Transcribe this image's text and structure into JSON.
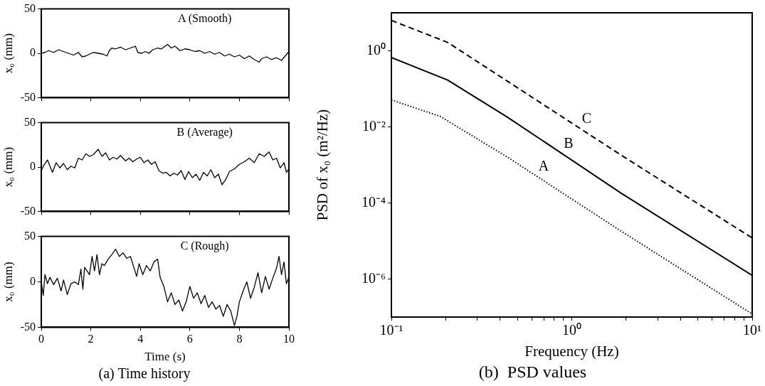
{
  "chart_data": [
    {
      "type": "line",
      "ylabel": "x₀ (mm)",
      "annotations": [
        "A (Smooth)"
      ],
      "xlim": [
        0,
        10
      ],
      "ylim": [
        -50,
        50
      ],
      "xticks": [
        0,
        2,
        4,
        6,
        8,
        10
      ],
      "yticks": [
        -50,
        0,
        50
      ],
      "tick_labels": "y",
      "grid": false,
      "legend": false,
      "series": [
        {
          "color": "#000000",
          "x": [
            0,
            0.15,
            0.3,
            0.5,
            0.7,
            0.9,
            1.1,
            1.3,
            1.5,
            1.65,
            1.8,
            1.95,
            2.1,
            2.3,
            2.5,
            2.65,
            2.75,
            2.85,
            3.0,
            3.2,
            3.4,
            3.6,
            3.8,
            3.9,
            4.05,
            4.2,
            4.35,
            4.5,
            4.7,
            4.85,
            5.0,
            5.1,
            5.25,
            5.4,
            5.6,
            5.8,
            6.0,
            6.2,
            6.4,
            6.6,
            6.8,
            7.0,
            7.2,
            7.4,
            7.6,
            7.8,
            8.0,
            8.2,
            8.4,
            8.6,
            8.8,
            8.9,
            9.1,
            9.3,
            9.5,
            9.7,
            9.85,
            10
          ],
          "values": [
            0,
            1,
            3,
            1,
            4,
            2,
            0,
            -2,
            1,
            -4,
            -3,
            -1,
            1,
            0,
            -1,
            -3,
            3,
            6,
            5,
            7,
            4,
            6,
            8,
            1,
            0,
            2,
            0,
            4,
            6,
            5,
            8,
            10,
            6,
            8,
            3,
            5,
            4,
            2,
            3,
            0,
            2,
            -1,
            1,
            -3,
            -1,
            -4,
            -2,
            -6,
            -3,
            -7,
            -10,
            -6,
            -4,
            -7,
            -5,
            -8,
            -3,
            2
          ]
        }
      ]
    },
    {
      "type": "line",
      "ylabel": "x₀ (mm)",
      "annotations": [
        "B (Average)"
      ],
      "xlim": [
        0,
        10
      ],
      "ylim": [
        -50,
        50
      ],
      "xticks": [
        0,
        2,
        4,
        6,
        8,
        10
      ],
      "yticks": [
        -50,
        0,
        50
      ],
      "tick_labels": "y",
      "grid": false,
      "legend": false,
      "series": [
        {
          "color": "#000000",
          "x": [
            0,
            0.1,
            0.25,
            0.45,
            0.6,
            0.75,
            0.9,
            1.05,
            1.2,
            1.35,
            1.5,
            1.65,
            1.8,
            1.95,
            2.1,
            2.3,
            2.45,
            2.6,
            2.75,
            2.9,
            3.05,
            3.2,
            3.4,
            3.55,
            3.7,
            3.85,
            4.0,
            4.15,
            4.3,
            4.45,
            4.6,
            4.75,
            4.9,
            5.05,
            5.2,
            5.35,
            5.5,
            5.65,
            5.8,
            5.95,
            6.1,
            6.25,
            6.4,
            6.55,
            6.7,
            6.85,
            7.0,
            7.15,
            7.3,
            7.45,
            7.6,
            7.8,
            8.0,
            8.2,
            8.4,
            8.6,
            8.8,
            9.0,
            9.2,
            9.35,
            9.5,
            9.65,
            9.8,
            9.9,
            10
          ],
          "values": [
            -4,
            2,
            8,
            -6,
            5,
            -1,
            4,
            -3,
            1,
            -1,
            10,
            8,
            15,
            12,
            14,
            20,
            12,
            16,
            8,
            11,
            9,
            13,
            7,
            10,
            6,
            9,
            11,
            5,
            8,
            3,
            6,
            -4,
            -7,
            -6,
            -10,
            -7,
            -9,
            -4,
            -14,
            -5,
            -12,
            -8,
            -15,
            -6,
            -10,
            -3,
            -12,
            -8,
            -20,
            -14,
            -5,
            -2,
            3,
            6,
            10,
            5,
            15,
            12,
            17,
            8,
            10,
            -1,
            5,
            -6,
            -2
          ]
        }
      ]
    },
    {
      "type": "line",
      "title": "(a) Time history",
      "xlabel": "Time (s)",
      "ylabel": "x₀ (mm)",
      "annotations": [
        "C (Rough)"
      ],
      "xlim": [
        0,
        10
      ],
      "ylim": [
        -50,
        50
      ],
      "xticks": [
        0,
        2,
        4,
        6,
        8,
        10
      ],
      "yticks": [
        -50,
        0,
        50
      ],
      "grid": false,
      "legend": false,
      "series": [
        {
          "color": "#000000",
          "x": [
            0,
            0.08,
            0.15,
            0.25,
            0.35,
            0.5,
            0.65,
            0.8,
            0.9,
            1.05,
            1.2,
            1.35,
            1.5,
            1.6,
            1.68,
            1.75,
            1.85,
            1.95,
            2.05,
            2.15,
            2.25,
            2.35,
            2.45,
            2.55,
            2.7,
            2.85,
            3.0,
            3.15,
            3.3,
            3.45,
            3.6,
            3.75,
            3.85,
            3.95,
            4.1,
            4.25,
            4.4,
            4.55,
            4.7,
            4.8,
            4.95,
            5.1,
            5.25,
            5.4,
            5.55,
            5.7,
            5.85,
            6.0,
            6.15,
            6.3,
            6.45,
            6.6,
            6.75,
            6.9,
            7.05,
            7.2,
            7.35,
            7.5,
            7.65,
            7.8,
            7.9,
            8.0,
            8.15,
            8.3,
            8.45,
            8.6,
            8.75,
            8.9,
            9.05,
            9.2,
            9.35,
            9.5,
            9.6,
            9.7,
            9.8,
            9.9,
            10
          ],
          "values": [
            0,
            -15,
            8,
            -2,
            5,
            -3,
            4,
            -10,
            2,
            -14,
            -2,
            0,
            -3,
            14,
            -8,
            16,
            12,
            8,
            28,
            12,
            30,
            8,
            20,
            18,
            25,
            30,
            36,
            28,
            32,
            26,
            28,
            15,
            6,
            20,
            8,
            18,
            12,
            22,
            25,
            5,
            -5,
            -22,
            -12,
            -25,
            -20,
            -32,
            -22,
            -5,
            -18,
            -12,
            -24,
            -15,
            -28,
            -22,
            -30,
            -26,
            -38,
            -25,
            -32,
            -48,
            -38,
            -22,
            -10,
            0,
            -18,
            -6,
            10,
            -12,
            6,
            -8,
            4,
            15,
            28,
            8,
            22,
            -2,
            5
          ]
        }
      ]
    },
    {
      "type": "line",
      "title": "(b)  PSD values",
      "xlabel": "Frequency (Hz)",
      "ylabel": "PSD of x₀ (m²/Hz)",
      "log": "xy",
      "grid": false,
      "legend": false,
      "xlim": [
        0.1,
        10
      ],
      "ylim": [
        1e-07,
        10
      ],
      "xticks": [
        {
          "value": 0.1,
          "label": "10⁻¹"
        },
        {
          "value": 0.2,
          "label": null
        },
        {
          "value": 0.3,
          "label": null
        },
        {
          "value": 0.4,
          "label": null
        },
        {
          "value": 0.5,
          "label": null
        },
        {
          "value": 0.6,
          "label": null
        },
        {
          "value": 0.7,
          "label": null
        },
        {
          "value": 0.8,
          "label": null
        },
        {
          "value": 0.9,
          "label": null
        },
        {
          "value": 1,
          "label": "10⁰"
        },
        {
          "value": 2,
          "label": null
        },
        {
          "value": 3,
          "label": null
        },
        {
          "value": 4,
          "label": null
        },
        {
          "value": 5,
          "label": null
        },
        {
          "value": 6,
          "label": null
        },
        {
          "value": 7,
          "label": null
        },
        {
          "value": 8,
          "label": null
        },
        {
          "value": 9,
          "label": null
        },
        {
          "value": 10,
          "label": "10¹"
        }
      ],
      "yticks": [
        {
          "value": 1e-06,
          "label": "10⁻⁶"
        },
        {
          "value": 0.0001,
          "label": "10⁻⁴"
        },
        {
          "value": 0.01,
          "label": "10⁻²"
        },
        {
          "value": 1,
          "label": "10⁰"
        }
      ],
      "series": [
        {
          "name": "A",
          "color": "#000000",
          "line_style": "dotted",
          "x": [
            0.1,
            0.186,
            0.44,
            1.88,
            10
          ],
          "values": [
            0.051,
            0.019,
            0.0016,
            1.8e-05,
            1.2e-07
          ]
        },
        {
          "name": "B",
          "color": "#000000",
          "line_style": "solid",
          "x": [
            0.1,
            0.205,
            0.44,
            1.88,
            10
          ],
          "values": [
            0.67,
            0.17,
            0.018,
            0.00018,
            1.25e-06
          ]
        },
        {
          "name": "C",
          "color": "#000000",
          "line_style": "dashed",
          "x": [
            0.1,
            0.205,
            0.43,
            1.88,
            10
          ],
          "values": [
            6.3,
            1.67,
            0.17,
            0.0018,
            1.2e-05
          ]
        }
      ]
    }
  ]
}
